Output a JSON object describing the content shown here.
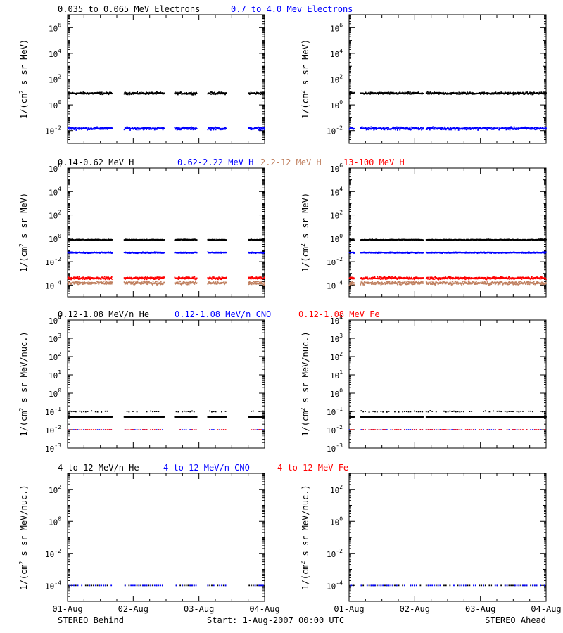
{
  "colors": {
    "black": "#000000",
    "blue": "#0000ff",
    "tan": "#c08060",
    "red": "#ff0000"
  },
  "footer": {
    "left": "STEREO Behind",
    "center": "Start:  1-Aug-2007 00:00 UTC",
    "right": "STEREO Ahead"
  },
  "x_ticks": [
    "01-Aug",
    "02-Aug",
    "03-Aug",
    "04-Aug"
  ],
  "chart_data": [
    {
      "row": "electrons",
      "type": "scatter",
      "legend": [
        {
          "label": "0.035 to 0.065 MeV Electrons",
          "color": "#000000"
        },
        {
          "label": "0.7 to 4.0 Mev Electrons",
          "color": "#0000ff"
        }
      ],
      "ylabel": "1/(cm² s sr MeV)",
      "ylabel_parts": [
        "1/(cm",
        "2",
        " s sr MeV)"
      ],
      "y_log_range": [
        -3,
        7
      ],
      "y_tick_exponents": [
        -2,
        0,
        2,
        4,
        6
      ],
      "x_range_days": [
        0,
        3
      ],
      "behind_gaps_days": [
        [
          0.68,
          0.86
        ],
        [
          1.47,
          1.63
        ],
        [
          1.97,
          2.13
        ],
        [
          2.42,
          2.75
        ],
        [
          3.03,
          3.16
        ]
      ],
      "ahead_gaps_days": [
        [
          0.08,
          0.17
        ],
        [
          1.13,
          1.17
        ]
      ],
      "series": [
        {
          "color": "#000000",
          "value": 8,
          "scatter_decades": 0.12
        },
        {
          "color": "#0000ff",
          "value": 0.015,
          "scatter_decades": 0.15
        }
      ]
    },
    {
      "row": "protons",
      "type": "scatter",
      "legend": [
        {
          "label": "0.14-0.62 MeV H",
          "color": "#000000"
        },
        {
          "label": "0.62-2.22 MeV H",
          "color": "#0000ff"
        },
        {
          "label": "2.2-12 MeV H",
          "color": "#c08060"
        },
        {
          "label": "13-100 MeV H",
          "color": "#ff0000"
        }
      ],
      "ylabel": "1/(cm² s sr MeV)",
      "ylabel_parts": [
        "1/(cm",
        "2",
        " s sr MeV)"
      ],
      "y_log_range": [
        -5,
        6
      ],
      "y_tick_exponents": [
        -4,
        -2,
        0,
        2,
        4,
        6
      ],
      "x_range_days": [
        0,
        3
      ],
      "behind_gaps_days": [
        [
          0.68,
          0.86
        ],
        [
          1.47,
          1.63
        ],
        [
          1.97,
          2.13
        ],
        [
          2.42,
          2.75
        ],
        [
          3.03,
          3.16
        ]
      ],
      "ahead_gaps_days": [
        [
          0.08,
          0.17
        ],
        [
          1.13,
          1.17
        ]
      ],
      "series": [
        {
          "color": "#000000",
          "value": 0.75,
          "scatter_decades": 0.06
        },
        {
          "color": "#0000ff",
          "value": 0.06,
          "scatter_decades": 0.07
        },
        {
          "color": "#c08060",
          "value": 0.00015,
          "scatter_decades": 0.2
        },
        {
          "color": "#ff0000",
          "value": 0.0004,
          "scatter_decades": 0.15
        }
      ]
    },
    {
      "row": "heavy-low",
      "type": "scatter",
      "legend": [
        {
          "label": "0.12-1.08 MeV/n He",
          "color": "#000000"
        },
        {
          "label": "0.12-1.08 MeV/n CNO",
          "color": "#0000ff"
        },
        {
          "label": "0.12-1.08 MeV Fe",
          "color": "#ff0000"
        }
      ],
      "ylabel": "1/(cm² s sr MeV/nuc.)",
      "ylabel_parts": [
        "1/(cm",
        "2",
        " s sr MeV/nuc.)"
      ],
      "y_log_range": [
        -3,
        4
      ],
      "y_tick_exponents": [
        -3,
        -2,
        -1,
        0,
        1,
        2,
        3,
        4
      ],
      "x_range_days": [
        0,
        3
      ],
      "behind_gaps_days": [
        [
          0.68,
          0.86
        ],
        [
          1.47,
          1.63
        ],
        [
          1.97,
          2.13
        ],
        [
          2.42,
          2.75
        ],
        [
          3.03,
          3.16
        ]
      ],
      "ahead_gaps_days": [
        [
          0.08,
          0.17
        ],
        [
          1.13,
          1.17
        ]
      ],
      "series": [
        {
          "color": "#000000",
          "value": 0.05,
          "scatter_decades": 0.0
        },
        {
          "color": "#000000",
          "value": 0.1,
          "scatter_decades": 0.05,
          "sparse": true
        },
        {
          "color": "#0000ff",
          "value": 0.01,
          "scatter_decades": 0.0,
          "sparse": true
        },
        {
          "color": "#ff0000",
          "value": 0.01,
          "scatter_decades": 0.0,
          "sparse": true
        }
      ]
    },
    {
      "row": "heavy-high",
      "type": "scatter",
      "legend": [
        {
          "label": "4 to 12 MeV/n He",
          "color": "#000000"
        },
        {
          "label": "4 to 12 MeV/n CNO",
          "color": "#0000ff"
        },
        {
          "label": "4 to 12 MeV Fe",
          "color": "#ff0000"
        }
      ],
      "ylabel": "1/(cm² s sr MeV/nuc.)",
      "ylabel_parts": [
        "1/(cm",
        "2",
        " s sr MeV/nuc.)"
      ],
      "y_log_range": [
        -5,
        3
      ],
      "y_tick_exponents": [
        -4,
        -2,
        0,
        2
      ],
      "x_range_days": [
        0,
        3
      ],
      "behind_gaps_days": [
        [
          0.68,
          0.86
        ],
        [
          1.47,
          1.63
        ],
        [
          1.97,
          2.13
        ],
        [
          2.42,
          2.75
        ],
        [
          3.03,
          3.16
        ]
      ],
      "ahead_gaps_days": [
        [
          0.08,
          0.17
        ],
        [
          1.13,
          1.17
        ]
      ],
      "series": [
        {
          "color": "#000000",
          "value": 0.0001,
          "scatter_decades": 0.0,
          "sparse": true
        },
        {
          "color": "#0000ff",
          "value": 0.0001,
          "scatter_decades": 0.0,
          "sparse": true
        }
      ]
    }
  ]
}
